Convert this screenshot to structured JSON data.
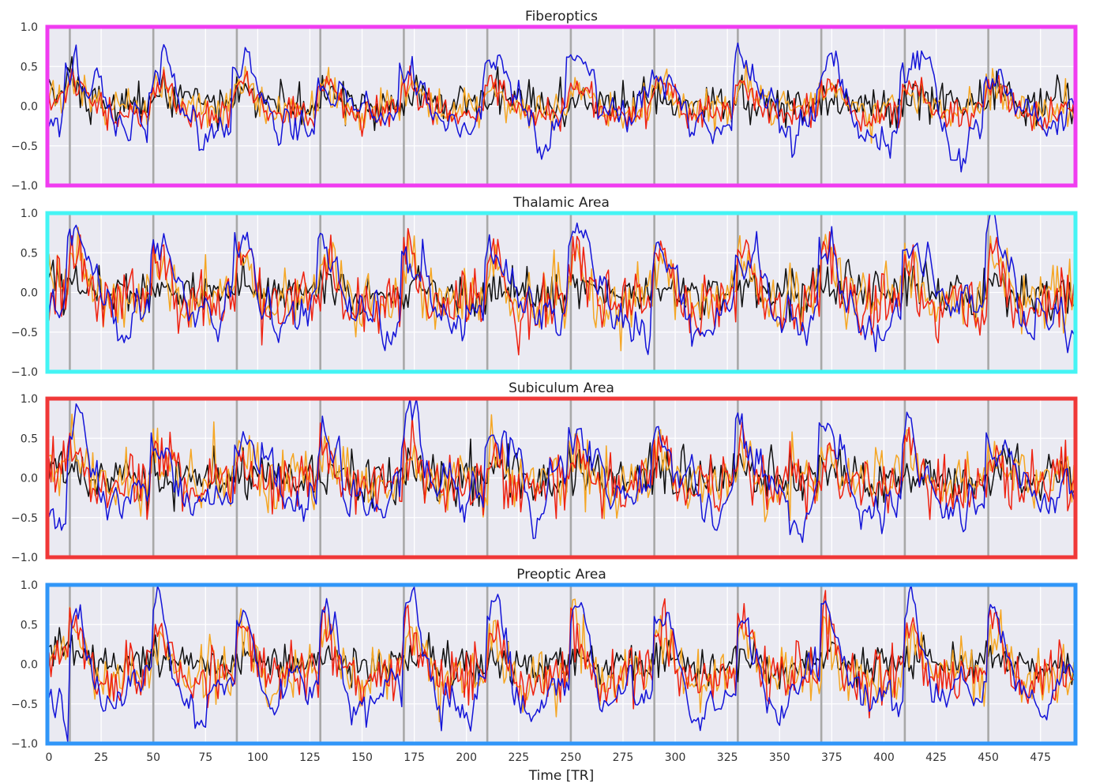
{
  "chart_data": {
    "type": "line",
    "xlabel": "Time [TR]",
    "xlim": [
      0,
      491
    ],
    "x_ticks": [
      "0",
      "25",
      "50",
      "75",
      "100",
      "125",
      "150",
      "175",
      "200",
      "225",
      "250",
      "275",
      "300",
      "325",
      "350",
      "375",
      "400",
      "425",
      "450",
      "475"
    ],
    "ylim": [
      -1.0,
      1.0
    ],
    "y_ticks": [
      "1.0",
      "0.5",
      "0.0",
      "−0.5",
      "−1.0"
    ],
    "grid": true,
    "legend": "none",
    "event_onsets_tr": [
      10,
      50,
      90,
      130,
      170,
      210,
      250,
      290,
      330,
      370,
      410,
      450
    ],
    "series_colors": {
      "black": "#111111",
      "orange": "#f5a623",
      "red": "#ee2211",
      "blue": "#1414d8"
    },
    "panels": [
      {
        "title": "Fiberoptics",
        "border_color": "#f03cf0",
        "series": [
          {
            "color": "black",
            "kind": "noise",
            "mean": 0.05,
            "std": 0.13,
            "peak": 0.1,
            "width": 10
          },
          {
            "color": "orange",
            "kind": "noise",
            "mean": 0.0,
            "std": 0.12,
            "peak": 0.25,
            "width": 9
          },
          {
            "color": "red",
            "kind": "noise",
            "mean": -0.05,
            "std": 0.1,
            "peak": 0.35,
            "width": 9
          },
          {
            "color": "blue",
            "kind": "smooth",
            "mean": -0.15,
            "std": 0.2,
            "peak": 0.65,
            "width": 12
          }
        ]
      },
      {
        "title": "Thalamic Area",
        "border_color": "#44f4f4",
        "series": [
          {
            "color": "black",
            "kind": "noise",
            "mean": 0.0,
            "std": 0.15,
            "peak": 0.1,
            "width": 10
          },
          {
            "color": "orange",
            "kind": "noise",
            "mean": -0.05,
            "std": 0.2,
            "peak": 0.5,
            "width": 7
          },
          {
            "color": "red",
            "kind": "noise",
            "mean": -0.1,
            "std": 0.2,
            "peak": 0.6,
            "width": 7
          },
          {
            "color": "blue",
            "kind": "smooth",
            "mean": -0.2,
            "std": 0.22,
            "peak": 0.8,
            "width": 10
          }
        ]
      },
      {
        "title": "Subiculum Area",
        "border_color": "#f03838",
        "series": [
          {
            "color": "black",
            "kind": "noise",
            "mean": 0.0,
            "std": 0.16,
            "peak": 0.1,
            "width": 10
          },
          {
            "color": "orange",
            "kind": "noise",
            "mean": 0.0,
            "std": 0.2,
            "peak": 0.35,
            "width": 7
          },
          {
            "color": "red",
            "kind": "noise",
            "mean": -0.05,
            "std": 0.2,
            "peak": 0.4,
            "width": 7
          },
          {
            "color": "blue",
            "kind": "smooth",
            "mean": -0.15,
            "std": 0.22,
            "peak": 0.75,
            "width": 10
          }
        ]
      },
      {
        "title": "Preoptic Area",
        "border_color": "#3096f8",
        "series": [
          {
            "color": "black",
            "kind": "noise",
            "mean": 0.0,
            "std": 0.12,
            "peak": 0.1,
            "width": 10
          },
          {
            "color": "orange",
            "kind": "noise",
            "mean": -0.1,
            "std": 0.18,
            "peak": 0.55,
            "width": 7
          },
          {
            "color": "red",
            "kind": "noise",
            "mean": -0.1,
            "std": 0.18,
            "peak": 0.6,
            "width": 7
          },
          {
            "color": "blue",
            "kind": "smooth",
            "mean": -0.25,
            "std": 0.2,
            "peak": 1.0,
            "width": 8
          }
        ]
      }
    ]
  }
}
